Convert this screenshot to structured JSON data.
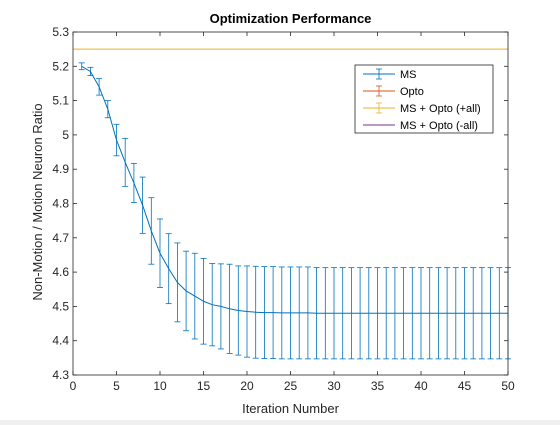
{
  "chart_data": {
    "type": "line",
    "title": "Optimization Performance",
    "xlabel": "Iteration Number",
    "ylabel": "Non-Motion / Motion Neuron Ratio",
    "xlim": [
      0,
      50
    ],
    "ylim": [
      4.3,
      5.3
    ],
    "xticks": [
      0,
      5,
      10,
      15,
      20,
      25,
      30,
      35,
      40,
      45,
      50
    ],
    "yticks": [
      4.3,
      4.4,
      4.5,
      4.6,
      4.7,
      4.8,
      4.9,
      5.0,
      5.1,
      5.2,
      5.3
    ],
    "ytick_labels": [
      "4.3",
      "4.4",
      "4.5",
      "4.6",
      "4.7",
      "4.8",
      "4.9",
      "5",
      "5.1",
      "5.2",
      "5.3"
    ],
    "grid": false,
    "legend_position": "top-right",
    "series": [
      {
        "name": "MS",
        "color": "#0072BD",
        "errorbar": true,
        "x": [
          1,
          2,
          3,
          4,
          5,
          6,
          7,
          8,
          9,
          10,
          11,
          12,
          13,
          14,
          15,
          16,
          17,
          18,
          19,
          20,
          21,
          22,
          23,
          24,
          25,
          26,
          27,
          28,
          29,
          30,
          31,
          32,
          33,
          34,
          35,
          36,
          37,
          38,
          39,
          40,
          41,
          42,
          43,
          44,
          45,
          46,
          47,
          48,
          49,
          50
        ],
        "y": [
          5.2,
          5.185,
          5.14,
          5.075,
          4.985,
          4.92,
          4.86,
          4.795,
          4.72,
          4.655,
          4.61,
          4.57,
          4.545,
          4.53,
          4.515,
          4.505,
          4.5,
          4.493,
          4.488,
          4.485,
          4.483,
          4.482,
          4.482,
          4.481,
          4.481,
          4.481,
          4.481,
          4.48,
          4.48,
          4.48,
          4.48,
          4.48,
          4.48,
          4.48,
          4.48,
          4.48,
          4.48,
          4.48,
          4.48,
          4.48,
          4.48,
          4.48,
          4.48,
          4.48,
          4.48,
          4.48,
          4.48,
          4.48,
          4.48,
          4.48
        ],
        "error": [
          0.01,
          0.012,
          0.024,
          0.025,
          0.046,
          0.07,
          0.057,
          0.082,
          0.097,
          0.1,
          0.102,
          0.115,
          0.116,
          0.125,
          0.125,
          0.12,
          0.124,
          0.13,
          0.13,
          0.133,
          0.134,
          0.134,
          0.134,
          0.134,
          0.134,
          0.134,
          0.134,
          0.133,
          0.133,
          0.133,
          0.133,
          0.133,
          0.133,
          0.133,
          0.133,
          0.133,
          0.133,
          0.133,
          0.133,
          0.133,
          0.133,
          0.133,
          0.133,
          0.133,
          0.133,
          0.133,
          0.133,
          0.133,
          0.133,
          0.133
        ]
      },
      {
        "name": "Opto",
        "color": "#D95319",
        "errorbar": true,
        "x": [],
        "y": [],
        "error": []
      },
      {
        "name": "MS + Opto (+all)",
        "color": "#EDB120",
        "errorbar": true,
        "x": [
          0,
          50
        ],
        "y": [
          5.25,
          5.25
        ],
        "error": [
          0,
          0
        ]
      },
      {
        "name": "MS + Opto (-all)",
        "color": "#7E2F8E",
        "errorbar": false,
        "x": [],
        "y": [],
        "error": []
      }
    ]
  }
}
